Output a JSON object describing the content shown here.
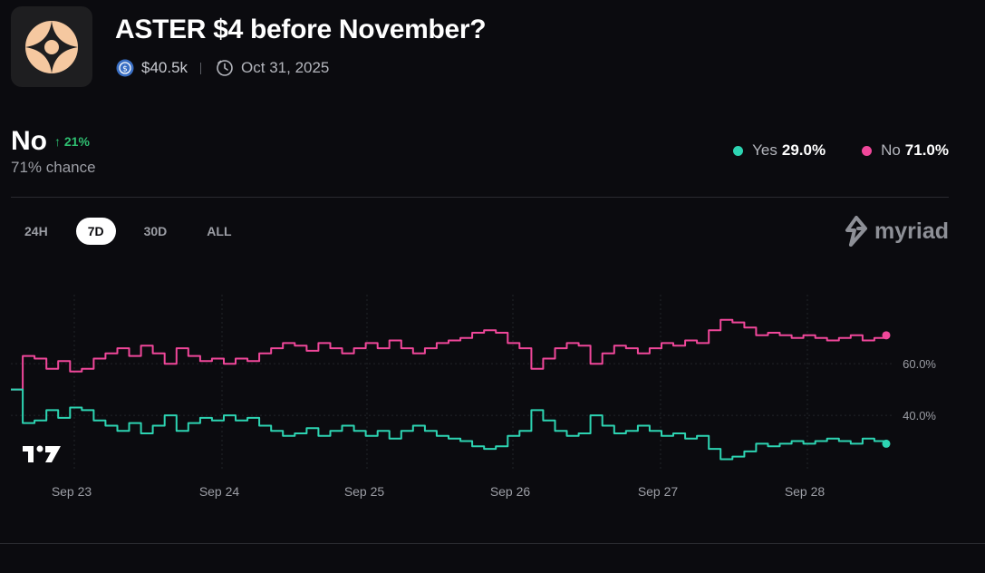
{
  "market": {
    "title": "ASTER $4 before November?",
    "volume": "$40.5k",
    "end_date": "Oct 31, 2025",
    "logo_icon": "aster-star-icon"
  },
  "outcome": {
    "name": "No",
    "change": "21%",
    "chance": "71% chance"
  },
  "legend": [
    {
      "label": "Yes",
      "value": "29.0%",
      "color": "#2dd4b2"
    },
    {
      "label": "No",
      "value": "71.0%",
      "color": "#f0479a"
    }
  ],
  "tabs": [
    {
      "label": "24H",
      "active": false
    },
    {
      "label": "7D",
      "active": true
    },
    {
      "label": "30D",
      "active": false
    },
    {
      "label": "ALL",
      "active": false
    }
  ],
  "brand": "myriad",
  "chart_data": {
    "type": "line",
    "x_ticks": [
      "Sep 23",
      "Sep 24",
      "Sep 25",
      "Sep 26",
      "Sep 27",
      "Sep 28"
    ],
    "y_ticks": [
      "60.0%",
      "40.0%"
    ],
    "ylim": [
      20,
      85
    ],
    "series": [
      {
        "name": "No",
        "color": "#f0479a",
        "values": [
          50,
          63,
          62,
          58,
          61,
          57,
          58,
          62,
          64,
          66,
          63,
          67,
          64,
          60,
          66,
          63,
          61,
          62,
          60,
          62,
          61,
          64,
          66,
          68,
          67,
          65,
          68,
          66,
          64,
          66,
          68,
          66,
          69,
          66,
          64,
          66,
          68,
          69,
          70,
          72,
          73,
          72,
          68,
          66,
          58,
          62,
          66,
          68,
          67,
          60,
          64,
          67,
          66,
          64,
          66,
          68,
          67,
          69,
          68,
          73,
          77,
          76,
          74,
          71,
          72,
          71,
          70,
          71,
          70,
          69,
          70,
          71,
          69,
          70,
          71
        ]
      },
      {
        "name": "Yes",
        "color": "#2dd4b2",
        "values": [
          50,
          37,
          38,
          42,
          39,
          43,
          42,
          38,
          36,
          34,
          37,
          33,
          36,
          40,
          34,
          37,
          39,
          38,
          40,
          38,
          39,
          36,
          34,
          32,
          33,
          35,
          32,
          34,
          36,
          34,
          32,
          34,
          31,
          34,
          36,
          34,
          32,
          31,
          30,
          28,
          27,
          28,
          32,
          34,
          42,
          38,
          34,
          32,
          33,
          40,
          36,
          33,
          34,
          36,
          34,
          32,
          33,
          31,
          32,
          27,
          23,
          24,
          26,
          29,
          28,
          29,
          30,
          29,
          30,
          31,
          30,
          29,
          31,
          30,
          29
        ]
      }
    ]
  }
}
